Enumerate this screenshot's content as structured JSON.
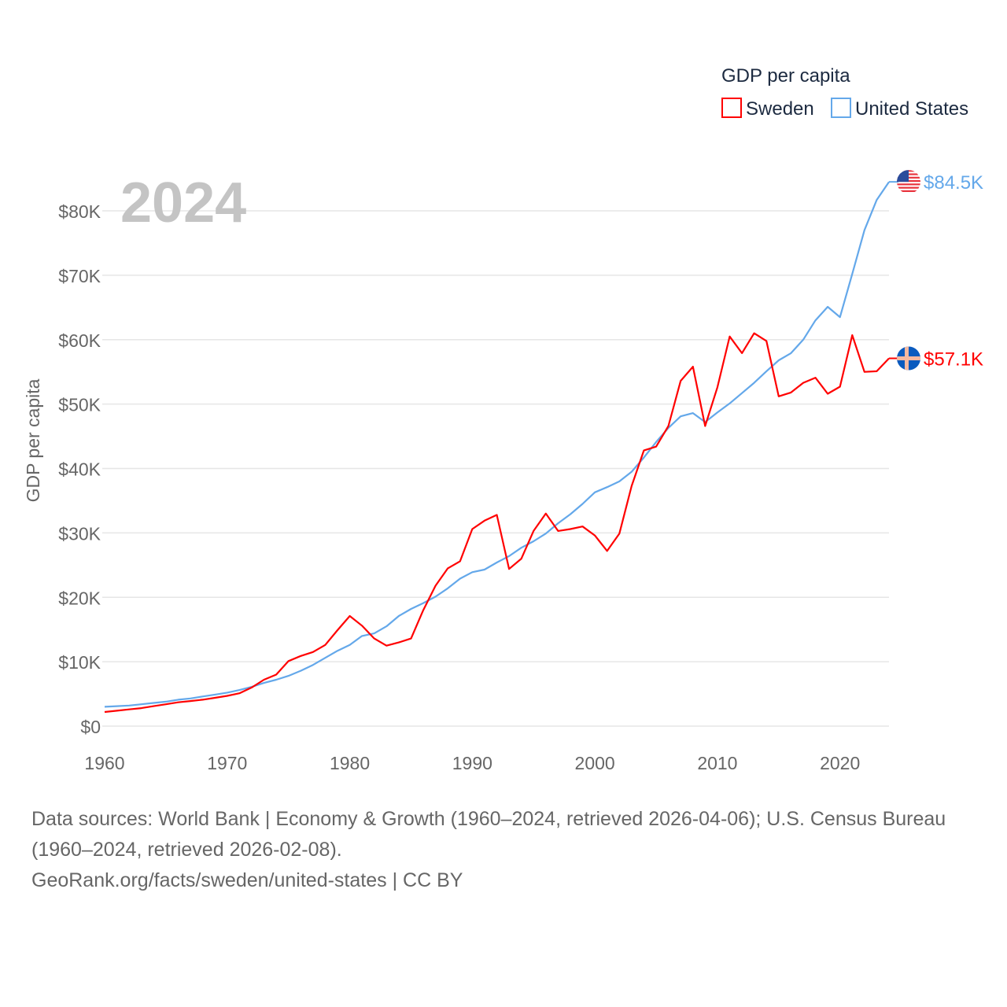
{
  "chart_data": {
    "type": "line",
    "title": "GDP per capita",
    "ylabel": "GDP per capita",
    "xlabel": "",
    "current_year_label": "2024",
    "ylim": [
      0,
      85000
    ],
    "xlim": [
      1960,
      2024
    ],
    "grid": true,
    "legend_placement": "top-right",
    "x_ticks": [
      "1960",
      "1970",
      "1980",
      "1990",
      "2000",
      "2010",
      "2020"
    ],
    "y_ticks": [
      {
        "value": 0,
        "label": "$0"
      },
      {
        "value": 10000,
        "label": "$10K"
      },
      {
        "value": 20000,
        "label": "$20K"
      },
      {
        "value": 30000,
        "label": "$30K"
      },
      {
        "value": 40000,
        "label": "$40K"
      },
      {
        "value": 50000,
        "label": "$50K"
      },
      {
        "value": 60000,
        "label": "$60K"
      },
      {
        "value": 70000,
        "label": "$70K"
      },
      {
        "value": 80000,
        "label": "$80K"
      }
    ],
    "x_start": 1960,
    "series": [
      {
        "name": "Sweden",
        "color": "#ff0000",
        "end_label": "$57.1K",
        "flag": "sweden-flag",
        "values": [
          2200,
          2400,
          2600,
          2800,
          3100,
          3400,
          3700,
          3900,
          4100,
          4400,
          4700,
          5100,
          6000,
          7200,
          8000,
          10100,
          10900,
          11500,
          12600,
          14900,
          17100,
          15600,
          13600,
          12500,
          13000,
          13600,
          18000,
          21800,
          24500,
          25600,
          30600,
          31900,
          32800,
          24400,
          26000,
          30300,
          33000,
          30300,
          30600,
          31000,
          29600,
          27200,
          29900,
          37300,
          42800,
          43400,
          46600,
          53600,
          55800,
          46600,
          52600,
          60500,
          57900,
          61000,
          59800,
          51200,
          51800,
          53300,
          54100,
          51600,
          52700,
          60700,
          55000,
          55100,
          57100
        ]
      },
      {
        "name": "United States",
        "color": "#64a8ea",
        "end_label": "$84.5K",
        "flag": "us-flag",
        "values": [
          3000,
          3100,
          3200,
          3400,
          3600,
          3800,
          4100,
          4300,
          4600,
          4900,
          5200,
          5600,
          6100,
          6700,
          7200,
          7800,
          8600,
          9500,
          10600,
          11700,
          12600,
          14000,
          14400,
          15500,
          17100,
          18200,
          19100,
          20100,
          21400,
          22900,
          23900,
          24300,
          25400,
          26400,
          27700,
          28700,
          29900,
          31500,
          32900,
          34500,
          36300,
          37100,
          38000,
          39500,
          41700,
          44100,
          46300,
          48100,
          48600,
          47200,
          48700,
          50100,
          51700,
          53300,
          55100,
          56800,
          57900,
          60000,
          63000,
          65100,
          63500,
          70200,
          77000,
          81700,
          84500
        ]
      }
    ]
  },
  "footer": {
    "line1": "Data sources: World Bank | Economy & Growth (1960–2024, retrieved 2026-04-06); U.S. Census Bureau",
    "line2": "(1960–2024, retrieved 2026-02-08).",
    "line3": "GeoRank.org/facts/sweden/united-states | CC BY"
  }
}
